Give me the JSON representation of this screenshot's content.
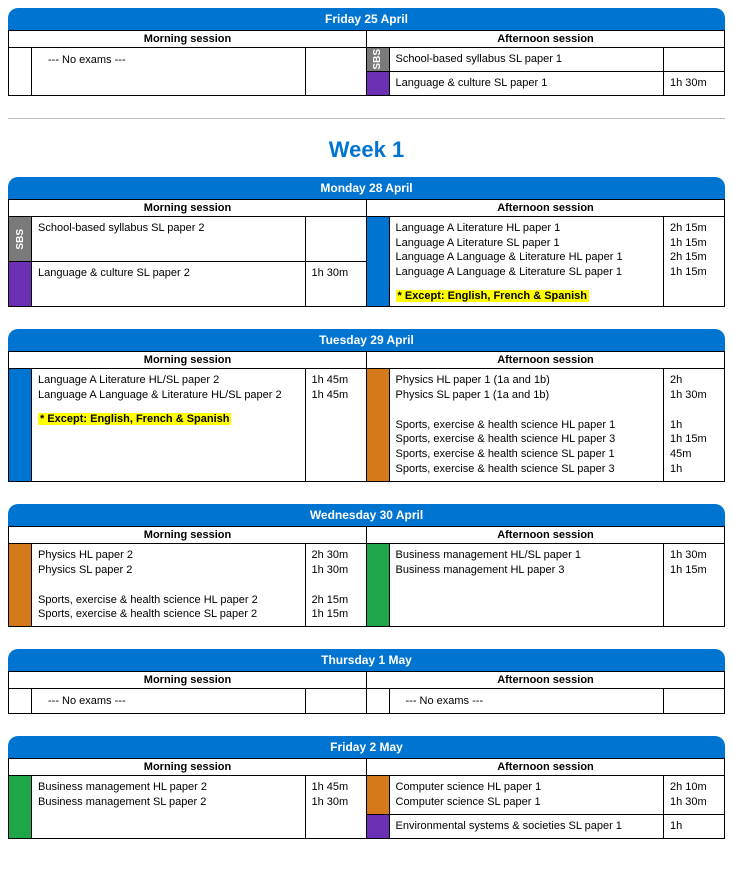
{
  "morning_label": "Morning session",
  "afternoon_label": "Afternoon session",
  "no_exams_text": "--- No exams ---",
  "week_label": "Week 1",
  "sbs_label": "SBS",
  "colors": {
    "header_bg": "#0074d1",
    "sbs": "#7a7a7a",
    "purple": "#6b2fb3",
    "blue": "#0074d1",
    "orange": "#d57a1b",
    "green": "#1fa648",
    "highlight": "#ffff00"
  },
  "days": [
    {
      "id": "fri25",
      "title": "Friday 25 April",
      "morning": {
        "no_exams": true,
        "slots": []
      },
      "afternoon": {
        "slots": [
          {
            "color": "sbs",
            "exams": [
              {
                "t": "School-based syllabus SL paper 1",
                "d": ""
              }
            ]
          },
          {
            "color": "purple",
            "exams": [
              {
                "t": "Language & culture SL paper 1",
                "d": "1h 30m"
              }
            ]
          }
        ]
      }
    },
    {
      "id": "mon28",
      "title": "Monday 28 April",
      "morning": {
        "slots": [
          {
            "color": "sbs",
            "exams": [
              {
                "t": "School-based syllabus SL paper 2",
                "d": ""
              }
            ]
          },
          {
            "color": "purple",
            "exams": [
              {
                "t": "Language & culture SL paper 2",
                "d": "1h 30m"
              }
            ]
          }
        ]
      },
      "afternoon": {
        "slots": [
          {
            "color": "blue",
            "exams": [
              {
                "t": "Language A Literature HL paper 1",
                "d": "2h 15m"
              },
              {
                "t": "Language A Literature SL paper 1",
                "d": "1h 15m"
              },
              {
                "t": "Language A Language & Literature HL paper 1",
                "d": "2h 15m"
              },
              {
                "t": "Language A Language & Literature SL paper 1",
                "d": "1h 15m"
              }
            ],
            "note": "* Except: English, French & Spanish"
          }
        ]
      }
    },
    {
      "id": "tue29",
      "title": "Tuesday 29 April",
      "morning": {
        "slots": [
          {
            "color": "blue",
            "exams": [
              {
                "t": "Language A Literature HL/SL paper 2",
                "d": "1h 45m"
              },
              {
                "t": "Language A Language & Literature HL/SL paper 2",
                "d": "1h 45m"
              }
            ],
            "note": "* Except: English, French & Spanish"
          }
        ]
      },
      "afternoon": {
        "slots": [
          {
            "color": "orange",
            "exams": [
              {
                "t": "Physics HL paper 1 (1a and 1b)",
                "d": "2h"
              },
              {
                "t": "Physics SL paper 1 (1a and 1b)",
                "d": "1h 30m"
              },
              {
                "t": "",
                "d": ""
              },
              {
                "t": "Sports, exercise & health science HL paper 1",
                "d": "1h"
              },
              {
                "t": "Sports, exercise & health science HL paper 3",
                "d": "1h 15m"
              },
              {
                "t": "Sports, exercise & health science SL paper 1",
                "d": "45m"
              },
              {
                "t": "Sports, exercise & health science SL paper 3",
                "d": "1h"
              }
            ]
          }
        ]
      }
    },
    {
      "id": "wed30",
      "title": "Wednesday 30 April",
      "morning": {
        "slots": [
          {
            "color": "orange",
            "exams": [
              {
                "t": "Physics HL paper 2",
                "d": "2h 30m"
              },
              {
                "t": "Physics SL paper 2",
                "d": "1h 30m"
              },
              {
                "t": "",
                "d": ""
              },
              {
                "t": "Sports, exercise & health science HL paper 2",
                "d": "2h 15m"
              },
              {
                "t": "Sports, exercise & health science SL paper 2",
                "d": "1h 15m"
              }
            ]
          }
        ]
      },
      "afternoon": {
        "slots": [
          {
            "color": "green",
            "exams": [
              {
                "t": "Business management HL/SL paper 1",
                "d": "1h 30m"
              },
              {
                "t": "Business management HL paper 3",
                "d": "1h 15m"
              }
            ]
          }
        ]
      }
    },
    {
      "id": "thu1",
      "title": "Thursday 1 May",
      "morning": {
        "no_exams": true,
        "slots": []
      },
      "afternoon": {
        "no_exams": true,
        "slots": []
      }
    },
    {
      "id": "fri2",
      "title": "Friday 2 May",
      "morning": {
        "slots": [
          {
            "color": "green",
            "exams": [
              {
                "t": "Business management HL paper 2",
                "d": "1h 45m"
              },
              {
                "t": "Business management SL paper 2",
                "d": "1h 30m"
              }
            ]
          }
        ]
      },
      "afternoon": {
        "slots": [
          {
            "color": "orange",
            "exams": [
              {
                "t": "Computer science HL paper 1",
                "d": "2h 10m"
              },
              {
                "t": "Computer science SL paper 1",
                "d": "1h 30m"
              }
            ]
          },
          {
            "color": "purple",
            "exams": [
              {
                "t": "Environmental systems & societies SL paper 1",
                "d": "1h"
              }
            ]
          }
        ]
      }
    }
  ]
}
